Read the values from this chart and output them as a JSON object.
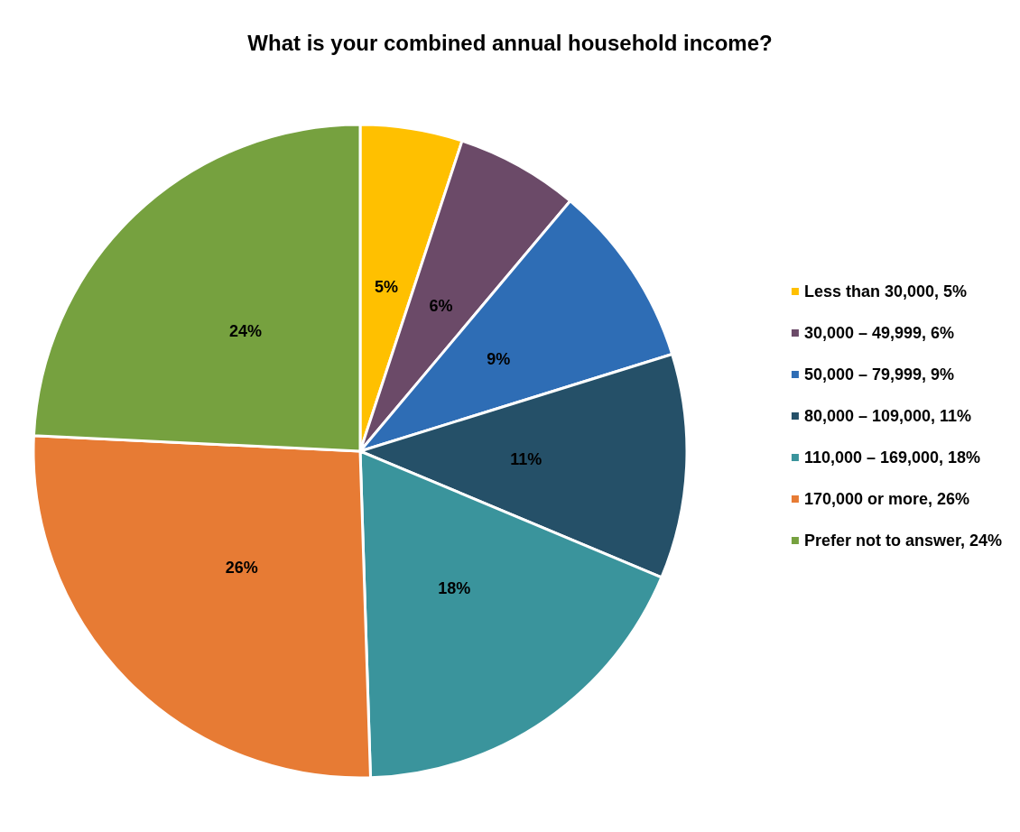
{
  "chart_data": {
    "type": "pie",
    "title": "What is your combined annual household income?",
    "categories": [
      "Less than 30,000",
      "30,000 – 49,999",
      "50,000 – 79,999",
      "80,000 – 109,000",
      "110,000 – 169,000",
      "170,000 or more",
      "Prefer not to answer"
    ],
    "values": [
      5,
      6,
      9,
      11,
      18,
      26,
      24
    ],
    "value_labels": [
      "5%",
      "6%",
      "9%",
      "11%",
      "18%",
      "26%",
      "24%"
    ],
    "colors": [
      "#ffc000",
      "#6b4a68",
      "#2e6db5",
      "#255068",
      "#3a949c",
      "#e77b34",
      "#76a13f"
    ],
    "legend": "right"
  }
}
